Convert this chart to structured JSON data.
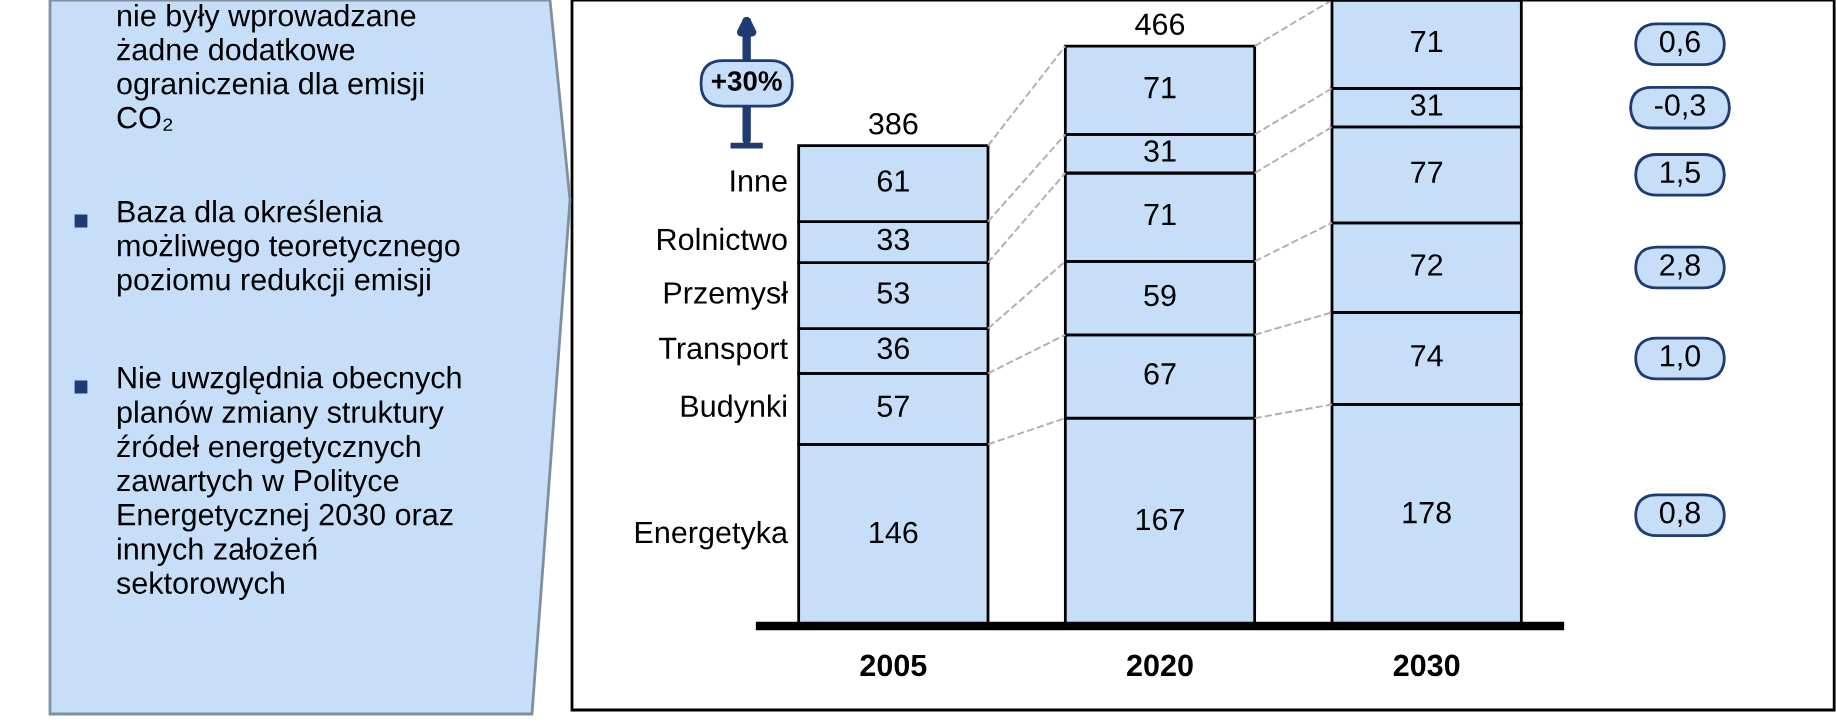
{
  "chart_data": {
    "type": "bar",
    "stacked": true,
    "categories": [
      "2005",
      "2020",
      "2030"
    ],
    "series": [
      {
        "name": "Energetyka",
        "color": "#c6def7",
        "values": [
          146,
          167,
          178
        ]
      },
      {
        "name": "Budynki",
        "color": "#c6def7",
        "values": [
          57,
          67,
          74
        ]
      },
      {
        "name": "Transport",
        "color": "#c6def7",
        "values": [
          36,
          59,
          72
        ]
      },
      {
        "name": "Przemysł",
        "color": "#c6def7",
        "values": [
          53,
          71,
          77
        ]
      },
      {
        "name": "Rolnictwo",
        "color": "#c6def7",
        "values": [
          33,
          31,
          31
        ]
      },
      {
        "name": "Inne",
        "color": "#c6def7",
        "values": [
          61,
          71,
          71
        ]
      }
    ],
    "data_labels": true,
    "totals": [
      "386",
      "466",
      null
    ],
    "legend": false,
    "annotations": [
      "nie były wprowadzane\nżadne dodatkowe\nograniczenia dla emisji\nCO₂",
      "Baza dla określenia\nmożliwego teoretycznego\npoziomu redukcji emisji",
      "Nie uwzględnia obecnych\nplanów zmiany struktury\nźródeł energetycznych\nzawartych w Polityce\nEnergetycznej 2030 oraz\ninnych założeń\nsektorowych",
      "+30%",
      "0,8",
      "1,0",
      "2,8",
      "1,5",
      "-0,3",
      "0,6"
    ]
  }
}
